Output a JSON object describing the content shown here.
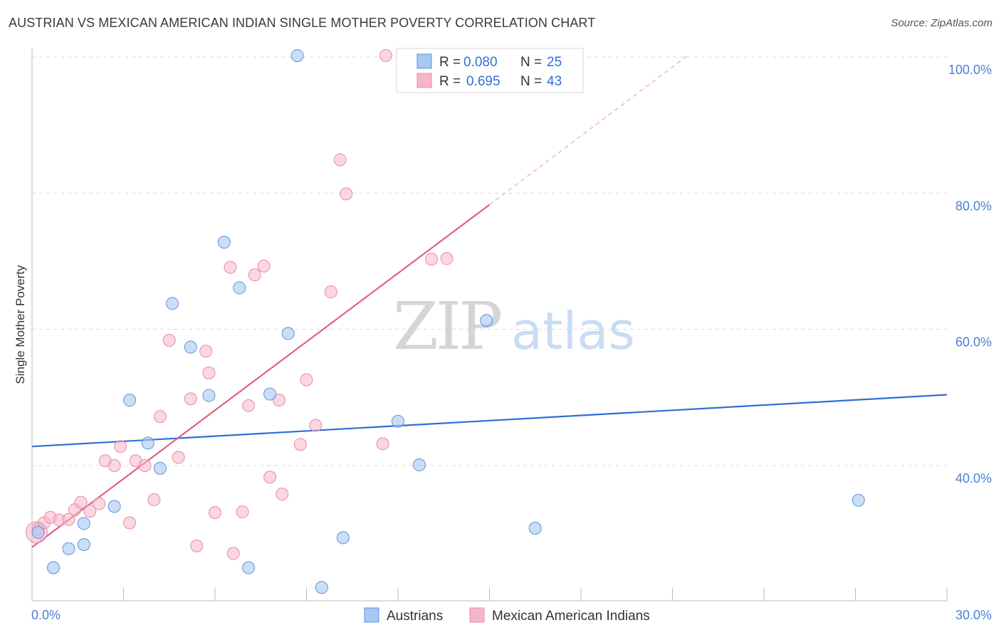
{
  "title": "AUSTRIAN VS MEXICAN AMERICAN INDIAN SINGLE MOTHER POVERTY CORRELATION CHART",
  "source": "Source: ZipAtlas.com",
  "watermark": {
    "zip": "ZIP",
    "atlas": "atlas"
  },
  "colors": {
    "blue_fill": "#a9c8f0",
    "blue_stroke": "#5b93dc",
    "blue_line": "#2f6fd6",
    "pink_fill": "#f6b6c9",
    "pink_stroke": "#e98aa8",
    "pink_line": "#e0608a",
    "grid": "#d8d8d8",
    "label": "#4a7fd4"
  },
  "legend": {
    "rows": [
      {
        "r_label": "R =",
        "r_value": "0.080",
        "n_label": "N =",
        "n_value": "25"
      },
      {
        "r_label": "R =",
        "r_value": "0.695",
        "n_label": "N =",
        "n_value": "43"
      }
    ]
  },
  "bottom_legend": [
    "Austrians",
    "Mexican American Indians"
  ],
  "chart_data": {
    "type": "scatter",
    "title": "AUSTRIAN VS MEXICAN AMERICAN INDIAN SINGLE MOTHER POVERTY CORRELATION CHART",
    "xlabel": "",
    "ylabel": "Single Mother Poverty",
    "xlim": [
      0,
      30
    ],
    "ylim": [
      20,
      102
    ],
    "x_tick_labels": [
      "0.0%",
      "30.0%"
    ],
    "y_ticks": [
      40,
      60,
      80,
      100
    ],
    "y_tick_labels": [
      "40.0%",
      "60.0%",
      "80.0%",
      "100.0%"
    ],
    "grid": true,
    "legend_position": "top-center",
    "series": [
      {
        "name": "Austrians",
        "r": 0.08,
        "n": 25,
        "points": [
          [
            0.2,
            30.2
          ],
          [
            0.7,
            25.0
          ],
          [
            1.2,
            27.8
          ],
          [
            1.7,
            28.4
          ],
          [
            1.7,
            31.5
          ],
          [
            2.7,
            34.0
          ],
          [
            3.2,
            49.6
          ],
          [
            3.8,
            43.3
          ],
          [
            4.2,
            39.6
          ],
          [
            4.6,
            63.8
          ],
          [
            5.2,
            57.4
          ],
          [
            5.8,
            50.3
          ],
          [
            6.3,
            72.8
          ],
          [
            6.8,
            66.1
          ],
          [
            7.1,
            25.0
          ],
          [
            7.8,
            50.5
          ],
          [
            8.4,
            59.4
          ],
          [
            8.7,
            100.2
          ],
          [
            9.5,
            22.1
          ],
          [
            10.2,
            29.4
          ],
          [
            12.0,
            46.5
          ],
          [
            12.7,
            40.1
          ],
          [
            14.9,
            61.3
          ],
          [
            16.5,
            30.8
          ],
          [
            27.1,
            34.9
          ]
        ],
        "trend": {
          "x": [
            0,
            30
          ],
          "y": [
            42.8,
            50.4
          ]
        }
      },
      {
        "name": "Mexican American Indians",
        "r": 0.695,
        "n": 43,
        "points": [
          [
            0.2,
            30.7
          ],
          [
            0.4,
            31.6
          ],
          [
            0.6,
            32.4
          ],
          [
            0.9,
            32.0
          ],
          [
            1.2,
            32.1
          ],
          [
            1.4,
            33.5
          ],
          [
            1.6,
            34.6
          ],
          [
            1.9,
            33.3
          ],
          [
            2.2,
            34.4
          ],
          [
            2.4,
            40.7
          ],
          [
            2.7,
            40.0
          ],
          [
            2.9,
            42.8
          ],
          [
            3.2,
            31.6
          ],
          [
            3.4,
            40.7
          ],
          [
            3.7,
            40.0
          ],
          [
            4.0,
            35.0
          ],
          [
            4.2,
            47.2
          ],
          [
            4.5,
            58.4
          ],
          [
            4.8,
            41.2
          ],
          [
            5.2,
            49.8
          ],
          [
            5.4,
            28.2
          ],
          [
            5.7,
            56.8
          ],
          [
            5.8,
            53.6
          ],
          [
            6.0,
            33.1
          ],
          [
            6.5,
            69.1
          ],
          [
            6.6,
            27.1
          ],
          [
            6.9,
            33.2
          ],
          [
            7.1,
            48.8
          ],
          [
            7.3,
            68.0
          ],
          [
            7.6,
            69.3
          ],
          [
            7.8,
            38.3
          ],
          [
            8.1,
            49.6
          ],
          [
            8.2,
            35.8
          ],
          [
            8.8,
            43.1
          ],
          [
            9.0,
            52.6
          ],
          [
            9.3,
            45.9
          ],
          [
            9.8,
            65.5
          ],
          [
            10.1,
            84.9
          ],
          [
            10.3,
            79.9
          ],
          [
            11.5,
            43.2
          ],
          [
            11.6,
            100.2
          ],
          [
            13.1,
            70.3
          ],
          [
            13.6,
            70.4
          ]
        ],
        "trend": {
          "x": [
            0,
            15
          ],
          "y": [
            28.0,
            78.3
          ]
        },
        "trend_dashed": {
          "x": [
            15,
            21.5
          ],
          "y": [
            78.3,
            100.2
          ]
        }
      }
    ]
  }
}
